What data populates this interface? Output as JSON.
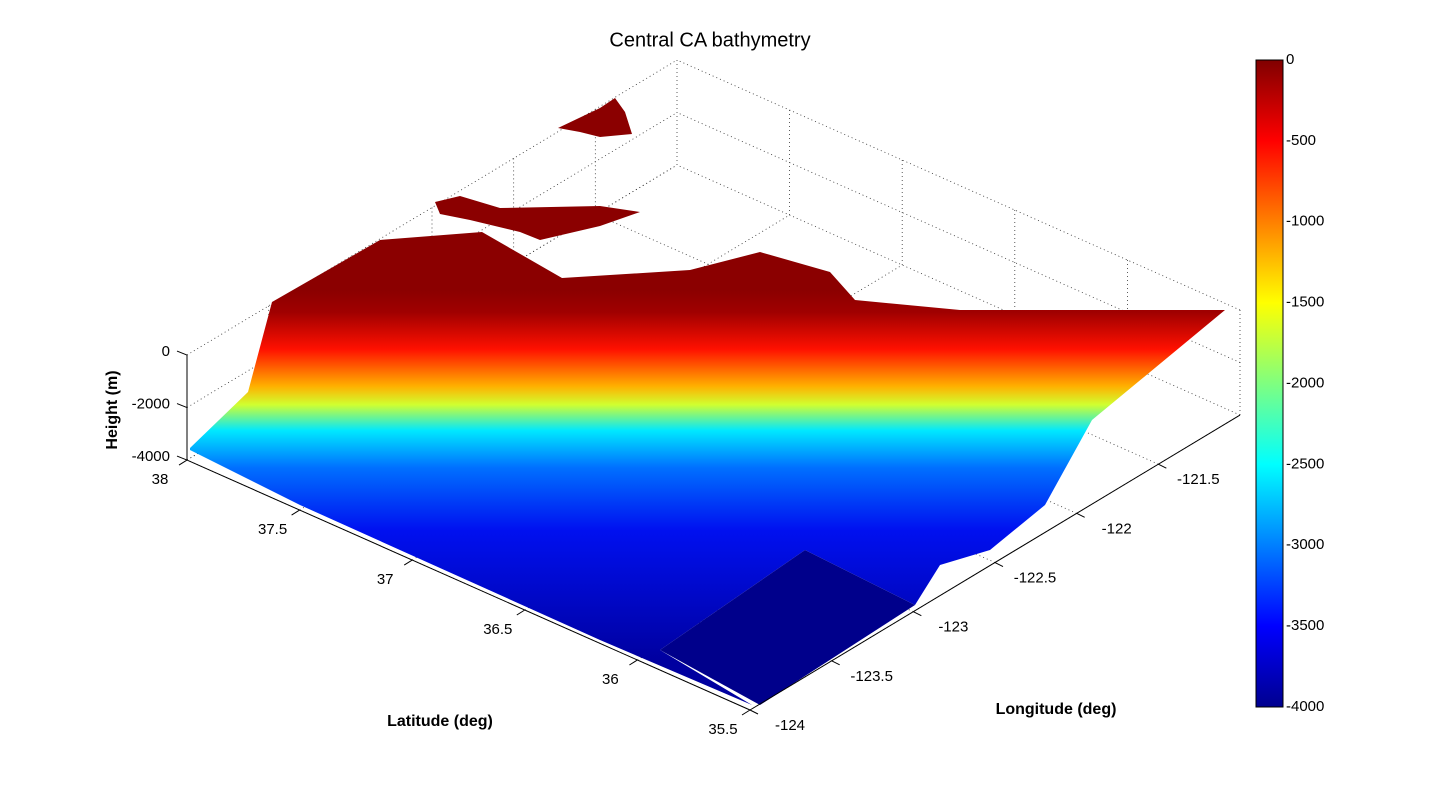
{
  "chart_data": {
    "type": "surface3d",
    "title": "Central CA bathymetry",
    "xlabel": "Longitude (deg)",
    "ylabel": "Latitude (deg)",
    "zlabel": "Height (m)",
    "xlim": [
      -124,
      -121
    ],
    "xticks": [
      -124,
      -123.5,
      -123,
      -122.5,
      -122,
      -121.5
    ],
    "ylim": [
      35.5,
      38
    ],
    "yticks": [
      35.5,
      36,
      36.5,
      37,
      37.5,
      38
    ],
    "zlim": [
      -4000,
      0
    ],
    "zticks": [
      -4000,
      -2000,
      0
    ],
    "colormap": "jet",
    "colorbar": {
      "clim": [
        -4000,
        0
      ],
      "ticks": [
        -4000,
        -3500,
        -3000,
        -2500,
        -2000,
        -1500,
        -1000,
        -500,
        0
      ]
    },
    "grid": true
  }
}
